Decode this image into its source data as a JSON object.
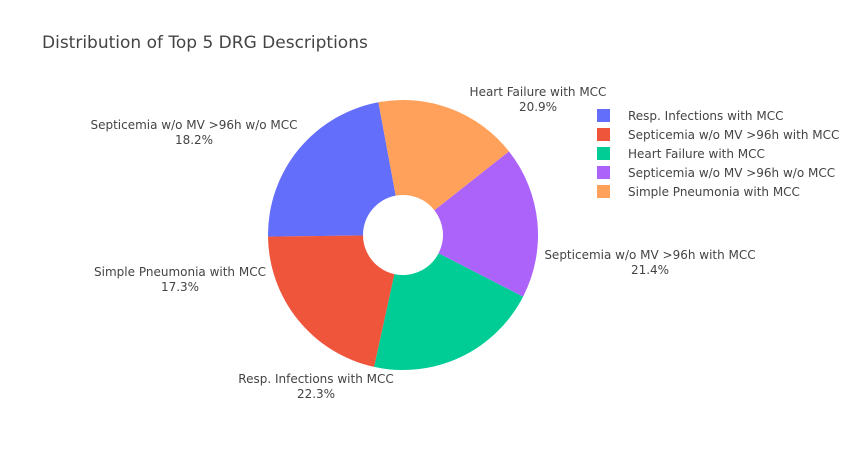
{
  "chart_data": {
    "type": "pie",
    "title": "Distribution of Top 5 DRG Descriptions",
    "hole": true,
    "legend_position": "right",
    "slices": [
      {
        "label": "Resp. Infections with MCC",
        "percent": 22.3,
        "percent_text": "22.3%",
        "color": "#636efa"
      },
      {
        "label": "Septicemia w/o MV >96h with MCC",
        "percent": 21.4,
        "percent_text": "21.4%",
        "color": "#EF553B"
      },
      {
        "label": "Heart Failure with MCC",
        "percent": 20.9,
        "percent_text": "20.9%",
        "color": "#00cc96"
      },
      {
        "label": "Septicemia w/o MV >96h w/o MCC",
        "percent": 18.2,
        "percent_text": "18.2%",
        "color": "#ab63fa"
      },
      {
        "label": "Simple Pneumonia with MCC",
        "percent": 17.3,
        "percent_text": "17.3%",
        "color": "#FFA15A"
      }
    ]
  }
}
